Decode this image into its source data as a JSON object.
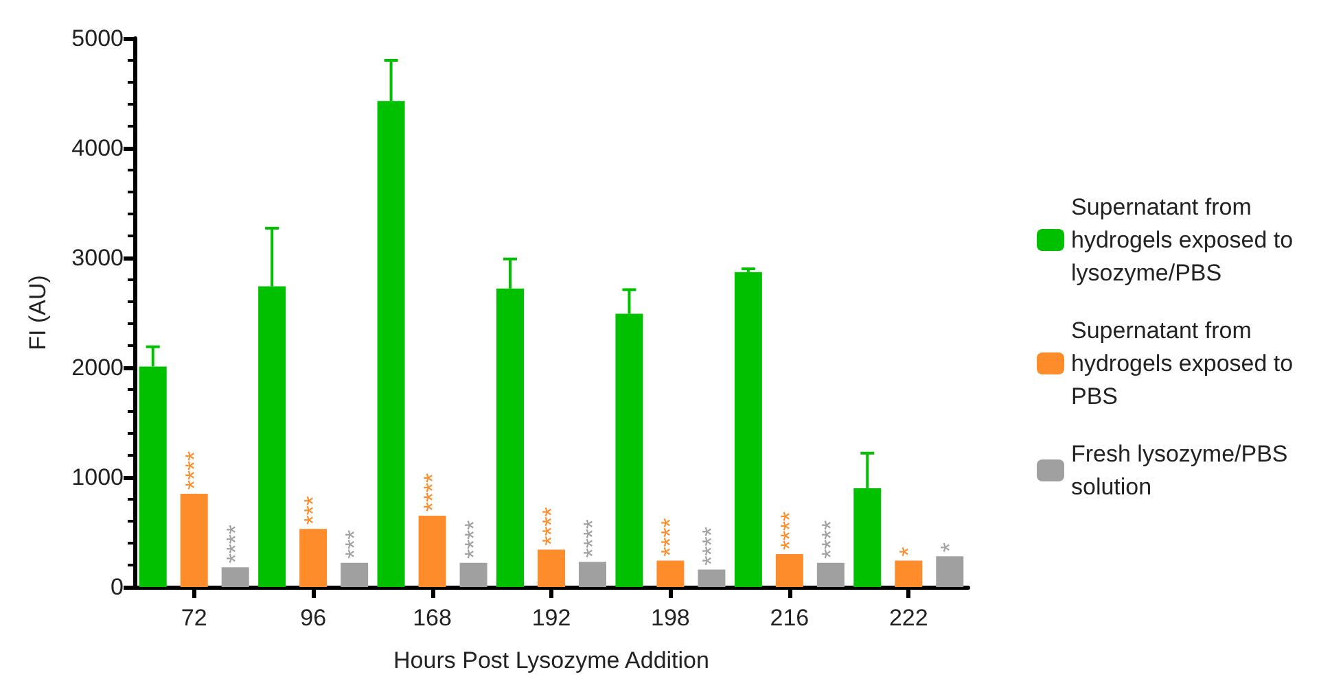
{
  "chart_data": {
    "type": "bar",
    "xlabel": "Hours Post Lysozyme Addition",
    "ylabel": "FI (AU)",
    "categories": [
      "72",
      "96",
      "168",
      "192",
      "198",
      "216",
      "222"
    ],
    "series": [
      {
        "name": "Supernatant from hydrogels exposed to lysozyme/PBS",
        "color": "#00c000",
        "values": [
          2010,
          2740,
          4430,
          2720,
          2490,
          2870,
          900
        ],
        "errors": [
          180,
          530,
          370,
          270,
          220,
          30,
          320
        ]
      },
      {
        "name": "Supernatant from hydrogels exposed to PBS",
        "color": "#ff8c2a",
        "values": [
          850,
          530,
          650,
          340,
          240,
          300,
          240
        ],
        "value_labels": [
          "****",
          "***",
          "****",
          "****",
          "****",
          "****",
          "*"
        ]
      },
      {
        "name": "Fresh lysozyme/PBS solution",
        "color": "#a0a0a0",
        "values": [
          180,
          220,
          220,
          230,
          160,
          220,
          280
        ],
        "value_labels": [
          "****",
          "***",
          "****",
          "****",
          "****",
          "****",
          "*"
        ]
      }
    ],
    "ylim": [
      0,
      5000
    ],
    "yticks": [
      0,
      1000,
      2000,
      3000,
      4000,
      5000
    ],
    "grid": false,
    "legend": "right"
  }
}
